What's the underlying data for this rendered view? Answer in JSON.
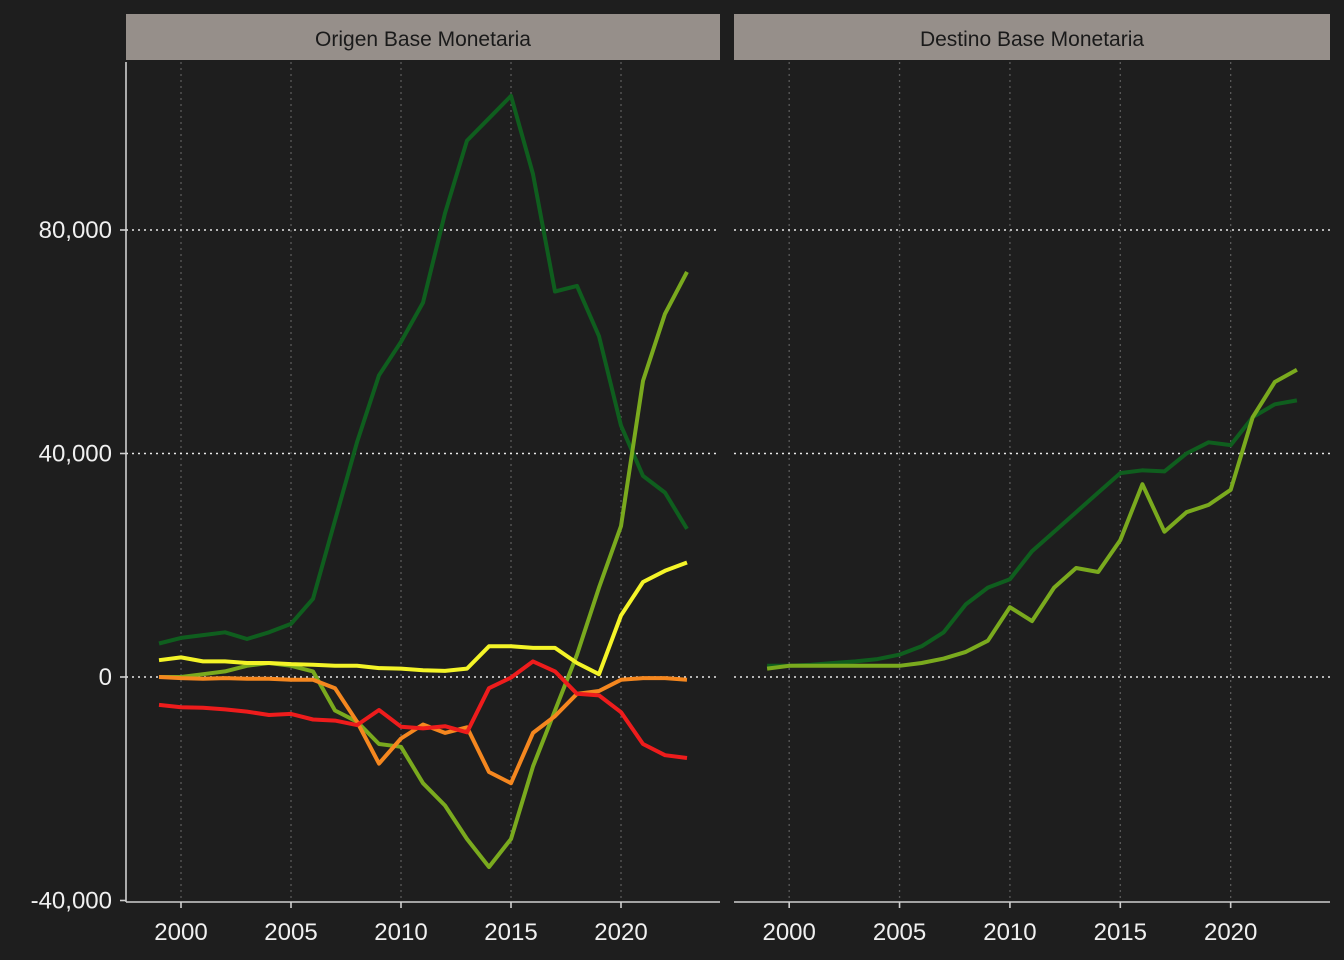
{
  "chart_data": {
    "type": "line",
    "facets": [
      "Origen Base Monetaria",
      "Destino Base Monetaria"
    ],
    "x": [
      1999,
      2000,
      2001,
      2002,
      2003,
      2004,
      2005,
      2006,
      2007,
      2008,
      2009,
      2010,
      2011,
      2012,
      2013,
      2014,
      2015,
      2016,
      2017,
      2018,
      2019,
      2020,
      2021,
      2022,
      2023
    ],
    "xlim": [
      1997.5,
      2024.5
    ],
    "xticks": [
      2000,
      2005,
      2010,
      2015,
      2020
    ],
    "xtick_labels": [
      "2000",
      "2005",
      "2010",
      "2015",
      "2020"
    ],
    "ylim": [
      -40000,
      112000
    ],
    "yticks": [
      -40000,
      0,
      40000,
      80000
    ],
    "ytick_labels": [
      "-40,000",
      "0",
      "40,000",
      "80,000"
    ],
    "xlabel": "",
    "ylabel": "",
    "title": "",
    "legend": "none",
    "grid": "major y dotted, x dotted faint",
    "background_color": "#1e1e1e",
    "strip_color": "#968f8a",
    "panels": [
      {
        "strip": "Origen Base Monetaria",
        "series": [
          {
            "color": "#0f5e1e",
            "values": [
              6000,
              7000,
              7500,
              8000,
              6800,
              8000,
              9500,
              14000,
              28000,
              42000,
              54000,
              60000,
              67000,
              83000,
              96000,
              100000,
              104000,
              90000,
              69000,
              70000,
              61000,
              45000,
              36000,
              33000,
              26500
            ]
          },
          {
            "color": "#7aaa1e",
            "values": [
              0,
              0,
              500,
              1000,
              2000,
              2500,
              2000,
              1000,
              -6000,
              -8000,
              -12000,
              -12500,
              -19000,
              -23000,
              -29000,
              -34000,
              -29000,
              -16000,
              -6000,
              4000,
              16000,
              27000,
              53000,
              65000,
              72500
            ]
          },
          {
            "color": "#f4f428",
            "values": [
              3000,
              3500,
              2800,
              2800,
              2500,
              2500,
              2300,
              2200,
              2000,
              2000,
              1600,
              1500,
              1200,
              1100,
              1500,
              5500,
              5500,
              5200,
              5200,
              2500,
              500,
              11000,
              17000,
              19000,
              20500
            ]
          },
          {
            "color": "#f5871f",
            "values": [
              0,
              -200,
              -300,
              -200,
              -300,
              -300,
              -500,
              -500,
              -2000,
              -8000,
              -15500,
              -11000,
              -8500,
              -10000,
              -9000,
              -17000,
              -19000,
              -10000,
              -7000,
              -3000,
              -2500,
              -500,
              -200,
              -200,
              -500
            ]
          },
          {
            "color": "#ee1c1c",
            "values": [
              -5000,
              -5400,
              -5500,
              -5800,
              -6200,
              -6800,
              -6600,
              -7600,
              -7800,
              -8600,
              -5900,
              -8900,
              -9200,
              -8800,
              -9900,
              -2000,
              -100,
              2800,
              1000,
              -3000,
              -3300,
              -6300,
              -12000,
              -14000,
              -14500
            ]
          }
        ]
      },
      {
        "strip": "Destino Base Monetaria",
        "series": [
          {
            "color": "#0f5e1e",
            "values": [
              2000,
              2000,
              2200,
              2500,
              2800,
              3200,
              4000,
              5500,
              8000,
              13000,
              16000,
              17500,
              22500,
              26000,
              29500,
              33000,
              36500,
              37000,
              36800,
              40000,
              42000,
              41500,
              46500,
              48800,
              49500
            ]
          },
          {
            "color": "#7aaa1e",
            "values": [
              1500,
              2000,
              2000,
              2000,
              2000,
              2000,
              2000,
              2500,
              3300,
              4500,
              6500,
              12500,
              10000,
              16000,
              19500,
              18800,
              24500,
              34500,
              26000,
              29500,
              30800,
              33500,
              46500,
              52800,
              55000
            ]
          }
        ]
      }
    ]
  }
}
